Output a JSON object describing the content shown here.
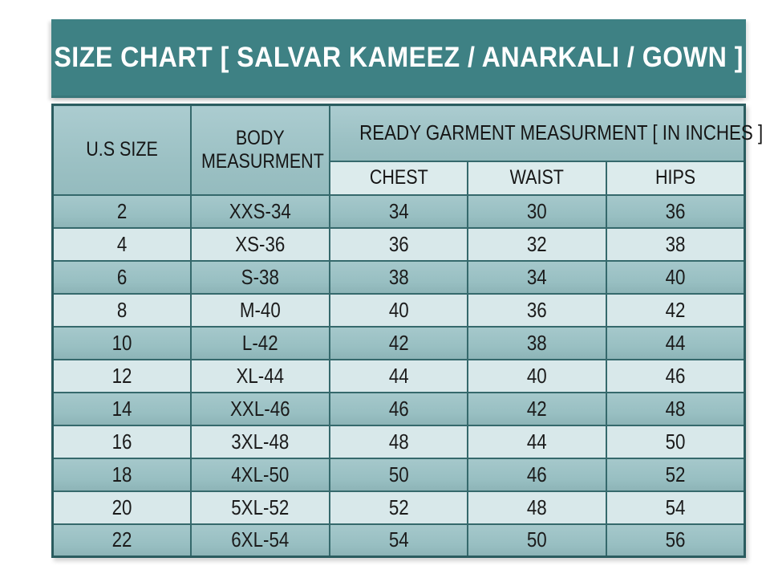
{
  "chart_data": {
    "type": "table",
    "title": "SIZE CHART [ SALVAR KAMEEZ / ANARKALI / GOWN ]",
    "column_group": {
      "label": "READY GARMENT MEASURMENT [ IN INCHES ]",
      "spans": [
        "CHEST",
        "WAIST",
        "HIPS"
      ]
    },
    "columns": [
      "U.S SIZE",
      "BODY MEASURMENT",
      "CHEST",
      "WAIST",
      "HIPS"
    ],
    "rows": [
      [
        "2",
        "XXS-34",
        "34",
        "30",
        "36"
      ],
      [
        "4",
        "XS-36",
        "36",
        "32",
        "38"
      ],
      [
        "6",
        "S-38",
        "38",
        "34",
        "40"
      ],
      [
        "8",
        "M-40",
        "40",
        "36",
        "42"
      ],
      [
        "10",
        "L-42",
        "42",
        "38",
        "44"
      ],
      [
        "12",
        "XL-44",
        "44",
        "40",
        "46"
      ],
      [
        "14",
        "XXL-46",
        "46",
        "42",
        "48"
      ],
      [
        "16",
        "3XL-48",
        "48",
        "44",
        "50"
      ],
      [
        "18",
        "4XL-50",
        "50",
        "46",
        "52"
      ],
      [
        "20",
        "5XL-52",
        "52",
        "48",
        "54"
      ],
      [
        "22",
        "6XL-54",
        "54",
        "50",
        "56"
      ]
    ],
    "layout": {
      "row_striping": "alternating",
      "first_data_row_shade": "dark",
      "header_structure": "U.S SIZE and BODY MEASURMENT span 2 rows; READY GARMENT group spans CHEST/WAIST/HIPS"
    }
  },
  "colors": {
    "title_bg": "#3e8184",
    "title_text": "#ffffff",
    "header_bg": "#9ec3c6",
    "subheader_bg": "#dcebec",
    "row_dark": "#9cc2c5",
    "row_light": "#d8e8ea",
    "grid_line": "#35696c",
    "outer_border": "#2a5c5f",
    "cell_text": "#1b1b1b",
    "page_bg": "#ffffff"
  }
}
